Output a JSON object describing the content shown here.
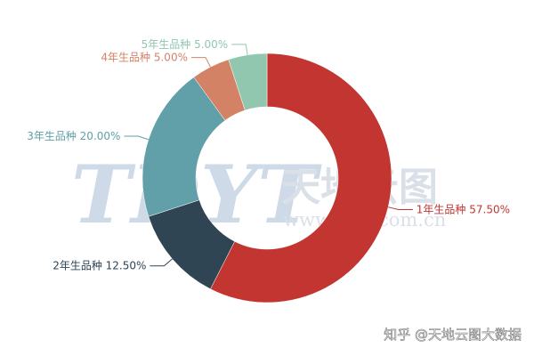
{
  "chart_data": {
    "type": "pie",
    "variant": "donut",
    "slices": [
      {
        "label": "1年生品种",
        "value": 57.5,
        "display": "1年生品种 57.50%",
        "color": "#c23531"
      },
      {
        "label": "2年生品种",
        "value": 12.5,
        "display": "2年生品种 12.50%",
        "color": "#2f4554"
      },
      {
        "label": "3年生品种",
        "value": 20.0,
        "display": "3年生品种 20.00%",
        "color": "#61a0a8"
      },
      {
        "label": "4年生品种",
        "value": 5.0,
        "display": "4年生品种 5.00%",
        "color": "#d48265"
      },
      {
        "label": "5年生品种",
        "value": 5.0,
        "display": "5年生品种 5.00%",
        "color": "#91c7ae"
      }
    ]
  },
  "watermark": {
    "logo_text": "TDYT",
    "brand_cn": "天地云图",
    "url": "www.tdyt.com.cn",
    "source_credit": "知乎 @天地云图大数据"
  }
}
